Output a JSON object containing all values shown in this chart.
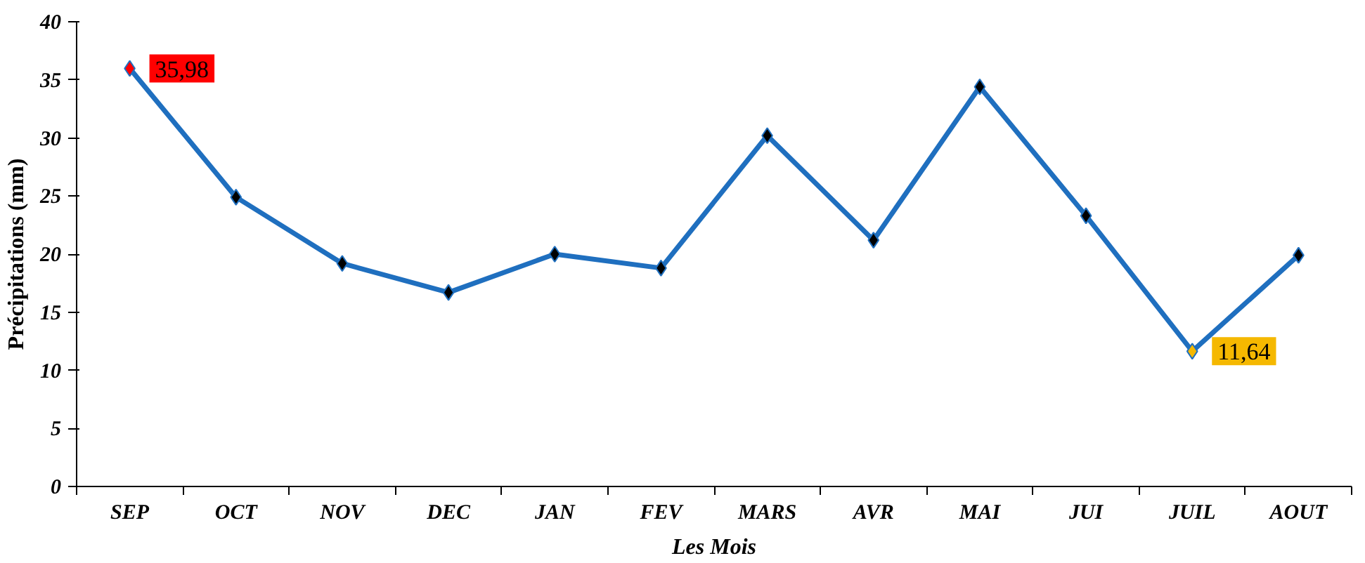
{
  "chart_data": {
    "type": "line",
    "xlabel": "Les Mois",
    "ylabel": "Précipitations (mm)",
    "categories": [
      "SEP",
      "OCT",
      "NOV",
      "DEC",
      "JAN",
      "FEV",
      "MARS",
      "AVR",
      "MAI",
      "JUI",
      "JUIL",
      "AOUT"
    ],
    "series": [
      {
        "color": "#1f6fbf",
        "colors": [
          "#ff0000",
          "#000000",
          "#000000",
          "#000000",
          "#000000",
          "#000000",
          "#000000",
          "#000000",
          "#000000",
          "#000000",
          "#f5b800",
          "#000000"
        ],
        "values": [
          35.98,
          24.9,
          19.2,
          16.7,
          20.0,
          18.8,
          30.2,
          21.2,
          34.4,
          23.3,
          11.64,
          19.9
        ],
        "value_labels": [
          "35,98",
          null,
          null,
          null,
          null,
          null,
          null,
          null,
          null,
          null,
          "11,64",
          null
        ]
      }
    ],
    "ylim": [
      0,
      40
    ],
    "yticks": [
      0,
      5,
      10,
      15,
      20,
      25,
      30,
      35,
      40
    ],
    "grid": false,
    "marker": "diamond",
    "line_style": "solid"
  }
}
